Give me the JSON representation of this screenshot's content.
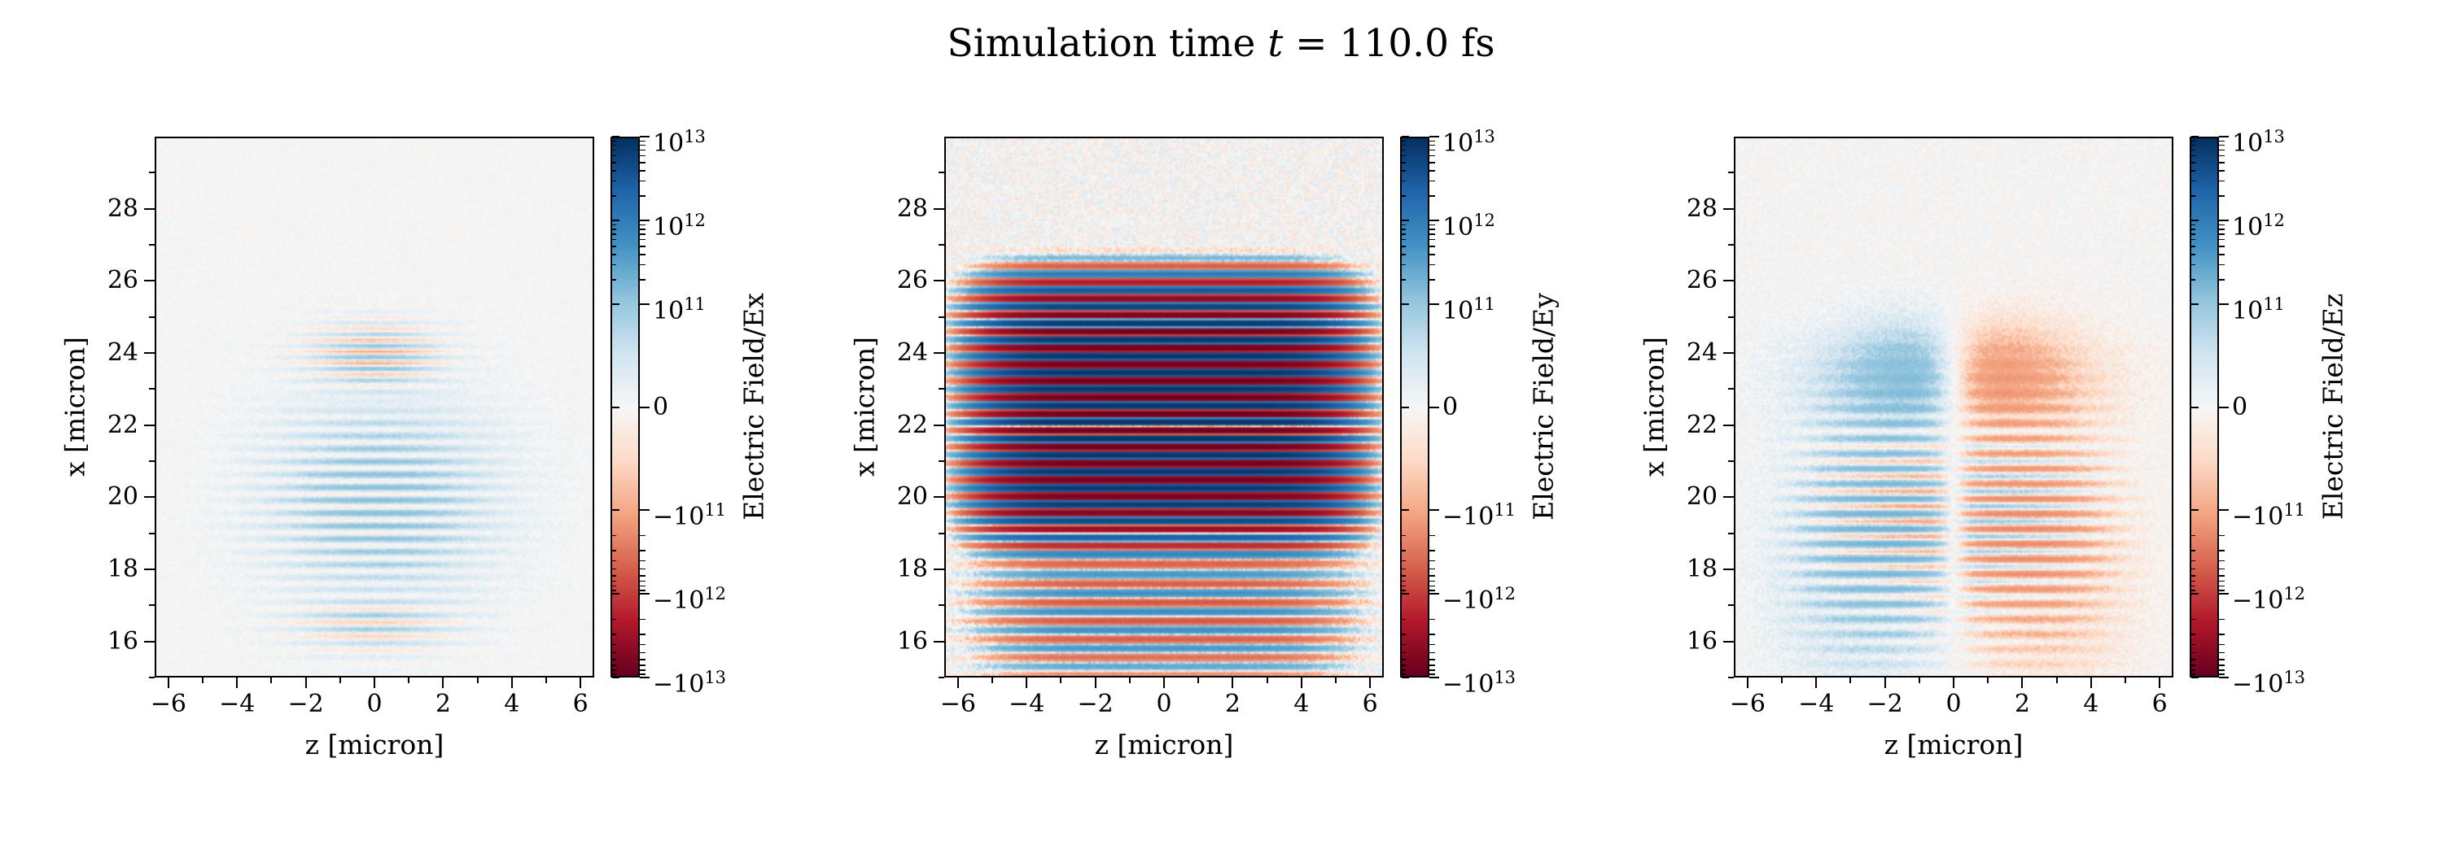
{
  "title": {
    "pre": "Simulation time ",
    "var": "t",
    "post": " = 110.0 fs"
  },
  "chart_data": {
    "type": "heatmap",
    "title": "Simulation time t = 110.0 fs",
    "colormap": {
      "name": "RdBu",
      "stops": [
        "#67001f",
        "#b2182b",
        "#d6604d",
        "#f4a582",
        "#fddbc7",
        "#f7f7f7",
        "#d1e5f0",
        "#92c5de",
        "#4393c4",
        "#2166ac",
        "#053061"
      ]
    },
    "norm": {
      "type": "symlog",
      "linthresh": 100000000000.0,
      "vmin": -10000000000000.0,
      "vmax": 10000000000000.0,
      "linfrac": 0.38
    },
    "xlim": [
      -6.4,
      6.4
    ],
    "ylim": [
      15,
      30
    ],
    "xticks": [
      {
        "v": -6,
        "label": "−6"
      },
      {
        "v": -4,
        "label": "−4"
      },
      {
        "v": -2,
        "label": "−2"
      },
      {
        "v": 0,
        "label": "0"
      },
      {
        "v": 2,
        "label": "2"
      },
      {
        "v": 4,
        "label": "4"
      },
      {
        "v": 6,
        "label": "6"
      }
    ],
    "xminors": [
      -5,
      -3,
      -1,
      1,
      3,
      5
    ],
    "yticks": [
      {
        "v": 16,
        "label": "16"
      },
      {
        "v": 18,
        "label": "18"
      },
      {
        "v": 20,
        "label": "20"
      },
      {
        "v": 22,
        "label": "22"
      },
      {
        "v": 24,
        "label": "24"
      },
      {
        "v": 26,
        "label": "26"
      },
      {
        "v": 28,
        "label": "28"
      }
    ],
    "yminors": [
      15,
      17,
      19,
      21,
      23,
      25,
      27,
      29
    ],
    "cticks": [
      {
        "v": 10000000000000.0,
        "pre": "",
        "base": "10",
        "sup": "13"
      },
      {
        "v": 1000000000000.0,
        "pre": "",
        "base": "10",
        "sup": "12"
      },
      {
        "v": 100000000000.0,
        "pre": "",
        "base": "10",
        "sup": "11"
      },
      {
        "v": 0,
        "text": "0"
      },
      {
        "v": -100000000000.0,
        "pre": "−",
        "base": "10",
        "sup": "11"
      },
      {
        "v": -1000000000000.0,
        "pre": "−",
        "base": "10",
        "sup": "12"
      },
      {
        "v": -10000000000000.0,
        "pre": "−",
        "base": "10",
        "sup": "13"
      }
    ],
    "panels": [
      {
        "name": "Ex",
        "xlabel": "z [micron]",
        "ylabel": "x [micron]",
        "colorbar_label": "Electric Field/Ex",
        "noise": 12000000000.0,
        "field_model": [
          {
            "amp": 60000000000.0,
            "xc": 20.0,
            "xs": 3.2,
            "px": 2,
            "zc": 0.3,
            "zs": 3.6,
            "pz": 2
          },
          {
            "amp": 80000000000.0,
            "period": 0.36,
            "phase": 0.1,
            "xc": 19.8,
            "xs": 2.4,
            "px": 2,
            "zc": 0.0,
            "zs": 3.0,
            "pz": 2
          },
          {
            "amp": -115000000000.0,
            "period": 0.32,
            "phase": 0.05,
            "xc": 23.9,
            "xs": 0.95,
            "px": 2,
            "zc": 0.0,
            "zs": 1.9,
            "pz": 2
          },
          {
            "amp": -70000000000.0,
            "period": 0.4,
            "phase": 0.1,
            "xc": 16.4,
            "xs": 0.8,
            "px": 2,
            "zc": 0.0,
            "zs": 2.4,
            "pz": 2
          }
        ]
      },
      {
        "name": "Ey",
        "xlabel": "z [micron]",
        "ylabel": "x [micron]",
        "colorbar_label": "Electric Field/Ey",
        "noise": 40000000000.0,
        "field_model": [
          {
            "amp": 9000000000000.0,
            "period": 0.46,
            "phase": 0.0,
            "xc": 22.4,
            "xs": 3.4,
            "px": 6,
            "zc": 0.0,
            "zs": 5.0,
            "pz": 6
          },
          {
            "amp": 600000000000.0,
            "period": 0.52,
            "phase": 0.15,
            "xc": 17.0,
            "xs": 1.6,
            "px": 2,
            "zc": 0.0,
            "zs": 4.8,
            "pz": 4
          },
          {
            "amp": 150000000000.0,
            "period": 0.5,
            "phase": 0.3,
            "xc": 15.6,
            "xs": 1.0,
            "px": 2,
            "zc": 0.0,
            "zs": 5.0,
            "pz": 6
          }
        ]
      },
      {
        "name": "Ez",
        "xlabel": "z [micron]",
        "ylabel": "x [micron]",
        "colorbar_label": "Electric Field/Ez",
        "noise": 20000000000.0,
        "field_model": [
          {
            "amp": 180000000000.0,
            "odd": 1.1,
            "xc": 23.3,
            "xs": 1.5,
            "px": 2,
            "zc": 0.0,
            "zs": 3.4,
            "pz": 2
          },
          {
            "amp": 160000000000.0,
            "period": 0.42,
            "phase": 0.2,
            "odd": 0.6,
            "xc": 19.3,
            "xs": 2.8,
            "px": 2,
            "zc": 0.0,
            "zs": 4.2,
            "pz": 4
          },
          {
            "amp": 80000000000.0,
            "odd": 1.5,
            "xc": 18.0,
            "xs": 3.5,
            "px": 2,
            "zc": 0.0,
            "zs": 5.0,
            "pz": 4
          }
        ]
      }
    ]
  }
}
